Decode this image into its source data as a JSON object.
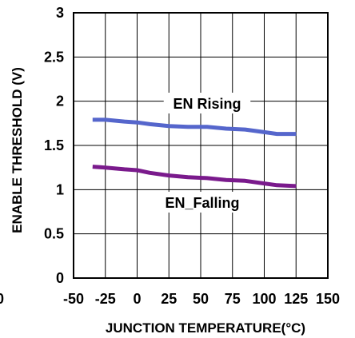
{
  "chart_data": {
    "type": "line",
    "title": "",
    "xlabel": "JUNCTION TEMPERATURE(°C)",
    "ylabel": "ENABLE THRESHOLD (V)",
    "xlim": [
      -50,
      150
    ],
    "ylim": [
      0,
      3
    ],
    "xticks": [
      -50,
      -25,
      0,
      25,
      50,
      75,
      100,
      125,
      150
    ],
    "yticks": [
      0,
      0.5,
      1,
      1.5,
      2,
      2.5,
      3
    ],
    "x_tick_labels": [
      "-50",
      "-25",
      "0",
      "25",
      "50",
      "75",
      "100",
      "125",
      "150"
    ],
    "y_tick_labels": [
      "0",
      "0.5",
      "1",
      "1.5",
      "2",
      "2.5",
      "3"
    ],
    "stray_label": "0",
    "grid": true,
    "legend": "none",
    "series": [
      {
        "name": "EN Rising",
        "color": "#5566cc",
        "x": [
          -35,
          -25,
          -10,
          0,
          10,
          25,
          40,
          55,
          70,
          85,
          100,
          110,
          125
        ],
        "y": [
          1.79,
          1.79,
          1.77,
          1.76,
          1.74,
          1.72,
          1.71,
          1.71,
          1.69,
          1.68,
          1.65,
          1.63,
          1.63
        ]
      },
      {
        "name": "EN_Falling",
        "color": "#7a1a8c",
        "x": [
          -35,
          -25,
          -10,
          0,
          10,
          25,
          40,
          55,
          70,
          85,
          100,
          110,
          125
        ],
        "y": [
          1.26,
          1.25,
          1.23,
          1.22,
          1.19,
          1.16,
          1.14,
          1.13,
          1.11,
          1.1,
          1.07,
          1.05,
          1.04
        ]
      }
    ]
  }
}
